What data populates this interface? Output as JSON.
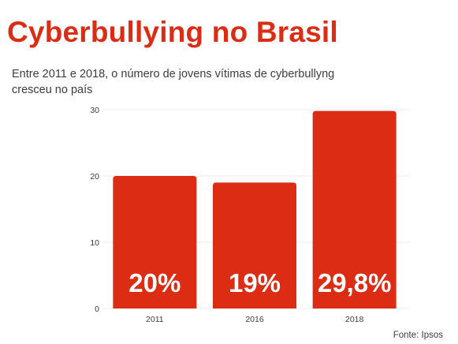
{
  "header": {
    "title": "Cyberbullying no Brasil",
    "subtitle": "Entre 2011 e 2018, o número de jovens vítimas de cyberbullyng cresceu no país"
  },
  "footer": {
    "source": "Fonte: Ipsos"
  },
  "colors": {
    "bar": "#dc2d14",
    "title": "#dc2d14",
    "text": "#3d3d3d",
    "grid": "#eeeeee"
  },
  "chart_data": {
    "type": "bar",
    "categories": [
      "2011",
      "2016",
      "2018"
    ],
    "values": [
      20,
      19,
      29.8
    ],
    "data_labels": [
      "20%",
      "19%",
      "29,8%"
    ],
    "ylim": [
      0,
      30
    ],
    "yticks": [
      0,
      10,
      20,
      30
    ],
    "title": "",
    "xlabel": "",
    "ylabel": "",
    "grid": true
  }
}
